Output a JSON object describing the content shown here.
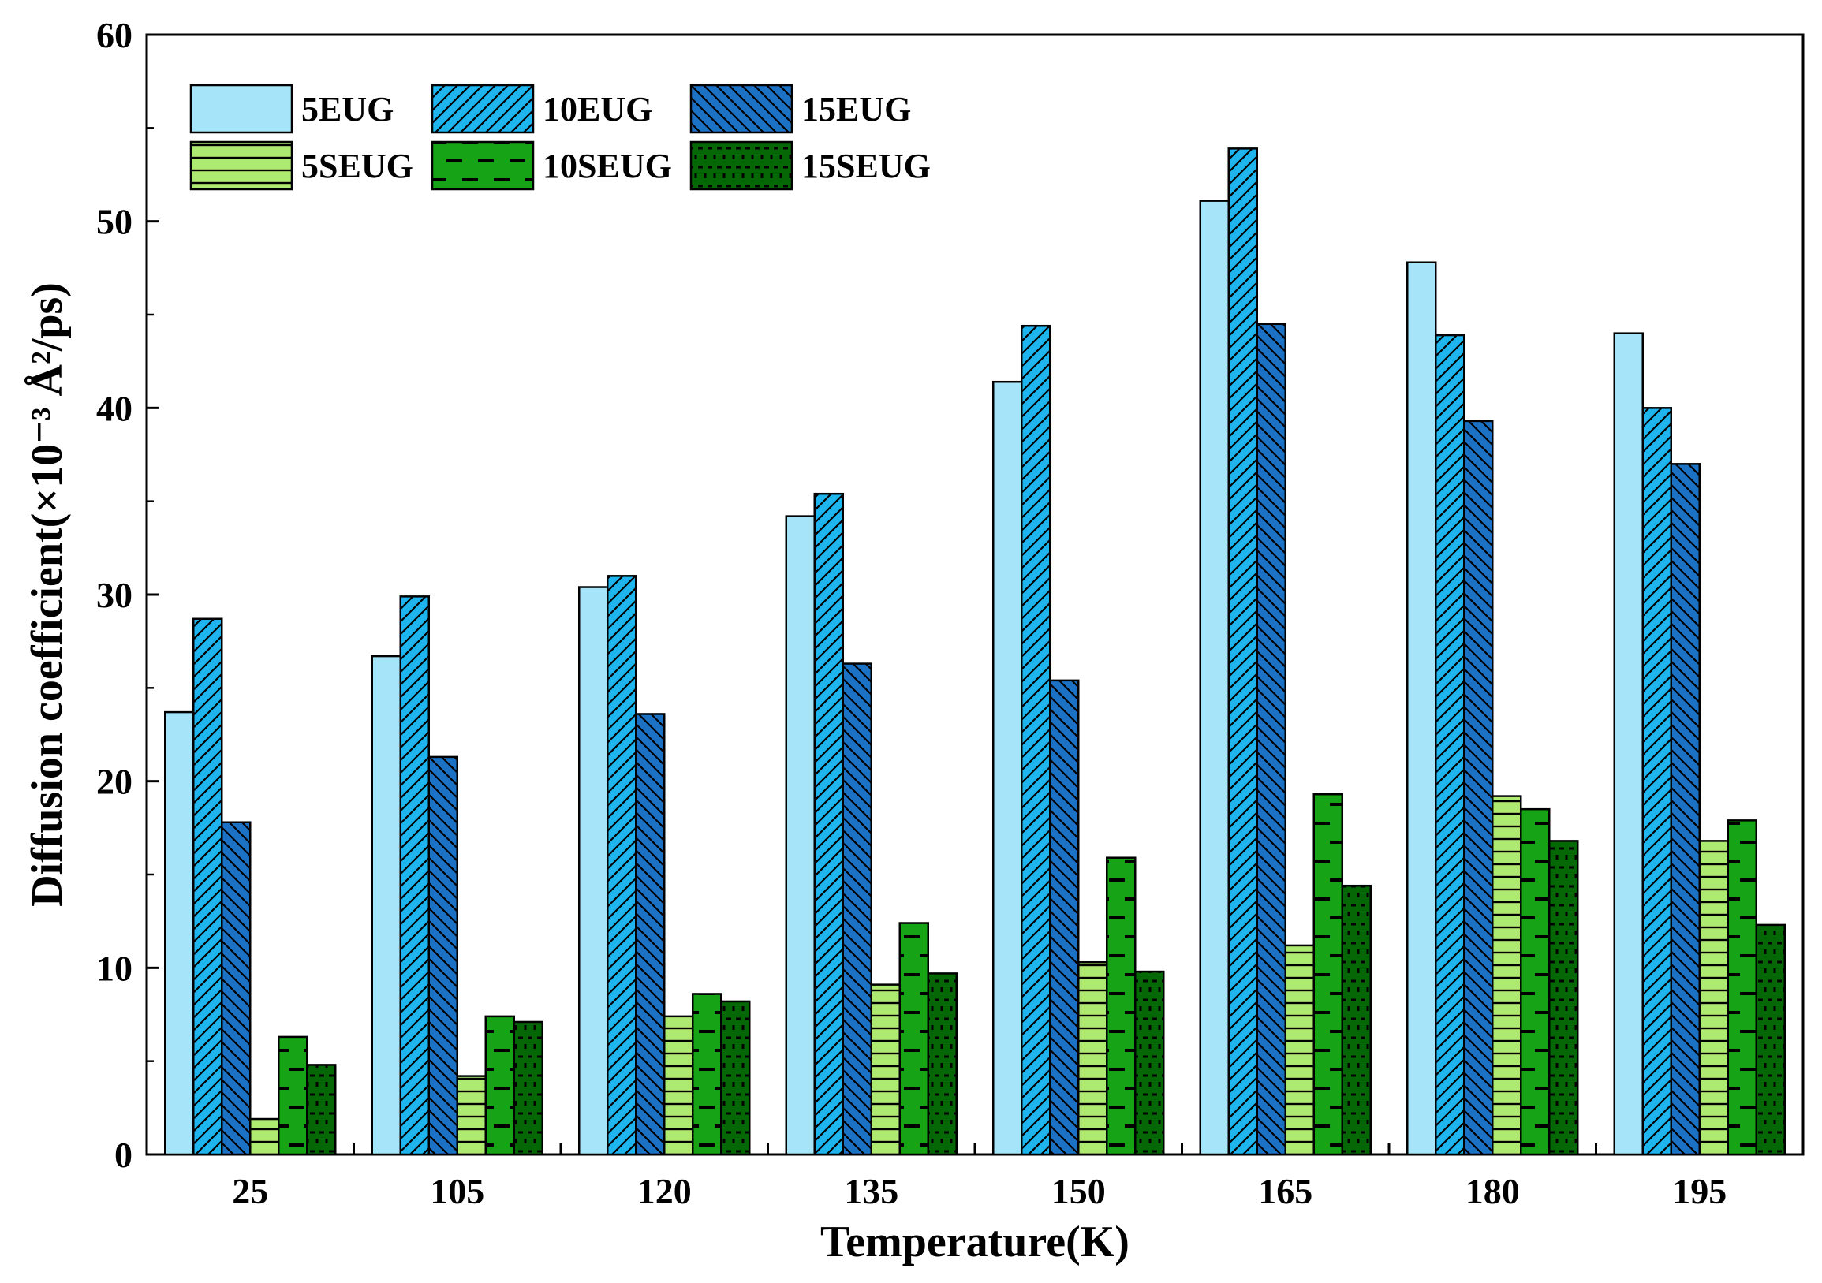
{
  "chart_data": {
    "type": "bar",
    "title": "",
    "xlabel": "Temperature(K)",
    "ylabel": "Diffusion coefficient(×10⁻³ Å²/ps)",
    "ylim": [
      0,
      60
    ],
    "yticks": [
      0,
      10,
      20,
      30,
      40,
      50,
      60
    ],
    "y_tick_labels": [
      "0",
      "10",
      "20",
      "30",
      "40",
      "50",
      "60"
    ],
    "grid": false,
    "legend_position": "top-left",
    "categories": [
      "25",
      "105",
      "120",
      "135",
      "150",
      "165",
      "180",
      "195"
    ],
    "series": [
      {
        "name": "5EUG",
        "values": [
          23.7,
          26.7,
          30.4,
          34.2,
          41.4,
          51.1,
          47.8,
          44.0
        ],
        "color": "#a6e4fa",
        "pattern": "none"
      },
      {
        "name": "10EUG",
        "values": [
          28.7,
          29.9,
          31.0,
          35.4,
          44.4,
          53.9,
          43.9,
          40.0
        ],
        "color": "#1eb4ee",
        "pattern": "diag-up"
      },
      {
        "name": "15EUG",
        "values": [
          17.8,
          21.3,
          23.6,
          26.3,
          25.4,
          44.5,
          39.3,
          37.0
        ],
        "color": "#1b72c4",
        "pattern": "diag-down"
      },
      {
        "name": "5SEUG",
        "values": [
          1.9,
          4.2,
          7.4,
          9.1,
          10.3,
          11.2,
          19.2,
          16.8
        ],
        "color": "#aeea72",
        "pattern": "horizontal"
      },
      {
        "name": "10SEUG",
        "values": [
          6.3,
          7.4,
          8.6,
          12.4,
          15.9,
          19.3,
          18.5,
          17.9
        ],
        "color": "#16a316",
        "pattern": "dash"
      },
      {
        "name": "15SEUG",
        "values": [
          4.8,
          7.1,
          8.2,
          9.7,
          9.8,
          14.4,
          16.8,
          12.3
        ],
        "color": "#056705",
        "pattern": "dot"
      }
    ]
  }
}
